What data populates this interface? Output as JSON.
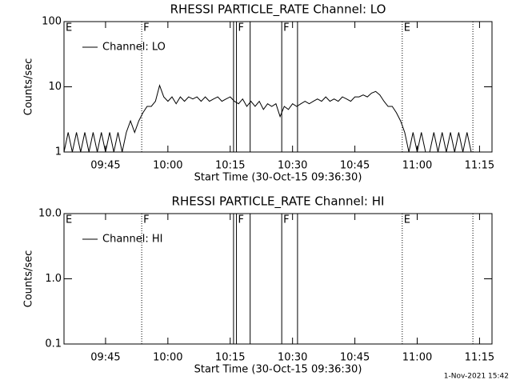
{
  "chart_data": [
    {
      "type": "line",
      "title": "RHESSI PARTICLE_RATE Channel: LO",
      "ylabel": "Counts/sec",
      "xlabel": "Start Time (30-Oct-15 09:36:30)",
      "log_y": true,
      "ylim": [
        1,
        100
      ],
      "yticks": [
        1,
        10,
        100
      ],
      "xlim": [
        "09:35",
        "11:18"
      ],
      "xticks": [
        "09:45",
        "10:00",
        "10:15",
        "10:30",
        "10:45",
        "11:00",
        "11:15"
      ],
      "legend": "upper left",
      "markers": [
        {
          "x": "09:35",
          "label": "E",
          "style": "dotted"
        },
        {
          "x": "09:53.7",
          "label": "F",
          "style": "dotted"
        },
        {
          "x": "10:15.8",
          "style": "solid"
        },
        {
          "x": "10:16.5",
          "label": "F",
          "style": "solid"
        },
        {
          "x": "10:19.8",
          "style": "solid"
        },
        {
          "x": "10:27.4",
          "label": "F",
          "style": "solid"
        },
        {
          "x": "10:31.2",
          "style": "solid"
        },
        {
          "x": "10:56.4",
          "label": "E",
          "style": "dotted"
        },
        {
          "x": "11:13.4",
          "style": "dotted"
        }
      ],
      "x": [
        "09:35",
        "09:36",
        "09:37",
        "09:38",
        "09:39",
        "09:40",
        "09:41",
        "09:42",
        "09:43",
        "09:44",
        "09:45",
        "09:46",
        "09:47",
        "09:48",
        "09:49",
        "09:50",
        "09:51",
        "09:52",
        "09:53",
        "09:54",
        "09:55",
        "09:56",
        "09:57",
        "09:58",
        "09:59",
        "10:00",
        "10:01",
        "10:02",
        "10:03",
        "10:04",
        "10:05",
        "10:06",
        "10:07",
        "10:08",
        "10:09",
        "10:10",
        "10:11",
        "10:12",
        "10:13",
        "10:14",
        "10:15",
        "10:16",
        "10:17",
        "10:18",
        "10:19",
        "10:20",
        "10:21",
        "10:22",
        "10:23",
        "10:24",
        "10:25",
        "10:26",
        "10:27",
        "10:28",
        "10:29",
        "10:30",
        "10:31",
        "10:32",
        "10:33",
        "10:34",
        "10:35",
        "10:36",
        "10:37",
        "10:38",
        "10:39",
        "10:40",
        "10:41",
        "10:42",
        "10:43",
        "10:44",
        "10:45",
        "10:46",
        "10:47",
        "10:48",
        "10:49",
        "10:50",
        "10:51",
        "10:52",
        "10:53",
        "10:54",
        "10:55",
        "10:56",
        "10:57",
        "10:58",
        "10:59",
        "11:00",
        "11:01",
        "11:02",
        "11:03",
        "11:04",
        "11:05",
        "11:06",
        "11:07",
        "11:08",
        "11:09",
        "11:10",
        "11:11",
        "11:12",
        "11:13"
      ],
      "series": [
        {
          "name": "Channel: LO",
          "color": "#000000",
          "values": [
            1,
            2,
            1,
            2,
            1,
            2,
            1,
            2,
            1,
            2,
            1,
            2,
            1,
            2,
            1,
            2,
            3,
            2,
            3,
            4,
            5,
            5,
            6,
            10.5,
            7,
            6,
            7,
            5.5,
            7,
            6,
            7,
            6.5,
            7,
            6,
            7,
            6,
            6.5,
            7,
            6,
            6.5,
            7,
            6,
            5.5,
            6.5,
            5,
            6,
            5,
            6,
            4.5,
            5.5,
            5,
            5.5,
            3.5,
            5,
            4.5,
            5.5,
            5,
            5.5,
            6,
            5.5,
            6,
            6.5,
            6,
            7,
            6,
            6.5,
            6,
            7,
            6.5,
            6,
            7,
            7,
            7.5,
            7,
            8,
            8.5,
            7.5,
            6,
            5,
            5,
            4,
            3,
            2,
            1,
            2,
            1,
            2,
            1,
            1,
            2,
            1,
            2,
            1,
            2,
            1,
            2,
            1,
            2,
            1
          ]
        }
      ]
    },
    {
      "type": "line",
      "title": "RHESSI PARTICLE_RATE Channel: HI",
      "ylabel": "Counts/sec",
      "xlabel": "Start Time (30-Oct-15 09:36:30)",
      "log_y": true,
      "ylim": [
        0.1,
        10
      ],
      "yticks": [
        0.1,
        {
          "value": 1,
          "label": "1.0"
        },
        {
          "value": 10,
          "label": "10.0"
        }
      ],
      "xlim": [
        "09:35",
        "11:18"
      ],
      "xticks": [
        "09:45",
        "10:00",
        "10:15",
        "10:30",
        "10:45",
        "11:00",
        "11:15"
      ],
      "legend": "upper left",
      "markers": [
        {
          "x": "09:35",
          "label": "E",
          "style": "dotted"
        },
        {
          "x": "09:53.7",
          "label": "F",
          "style": "dotted"
        },
        {
          "x": "10:15.8",
          "style": "solid"
        },
        {
          "x": "10:16.5",
          "label": "F",
          "style": "solid"
        },
        {
          "x": "10:19.8",
          "style": "solid"
        },
        {
          "x": "10:27.4",
          "label": "F",
          "style": "solid"
        },
        {
          "x": "10:31.2",
          "style": "solid"
        },
        {
          "x": "10:56.4",
          "label": "E",
          "style": "dotted"
        },
        {
          "x": "11:13.4",
          "style": "dotted"
        }
      ],
      "series": [
        {
          "name": "Channel: HI",
          "color": "#000000"
        }
      ]
    }
  ],
  "footer": "1-Nov-2021 15:42"
}
